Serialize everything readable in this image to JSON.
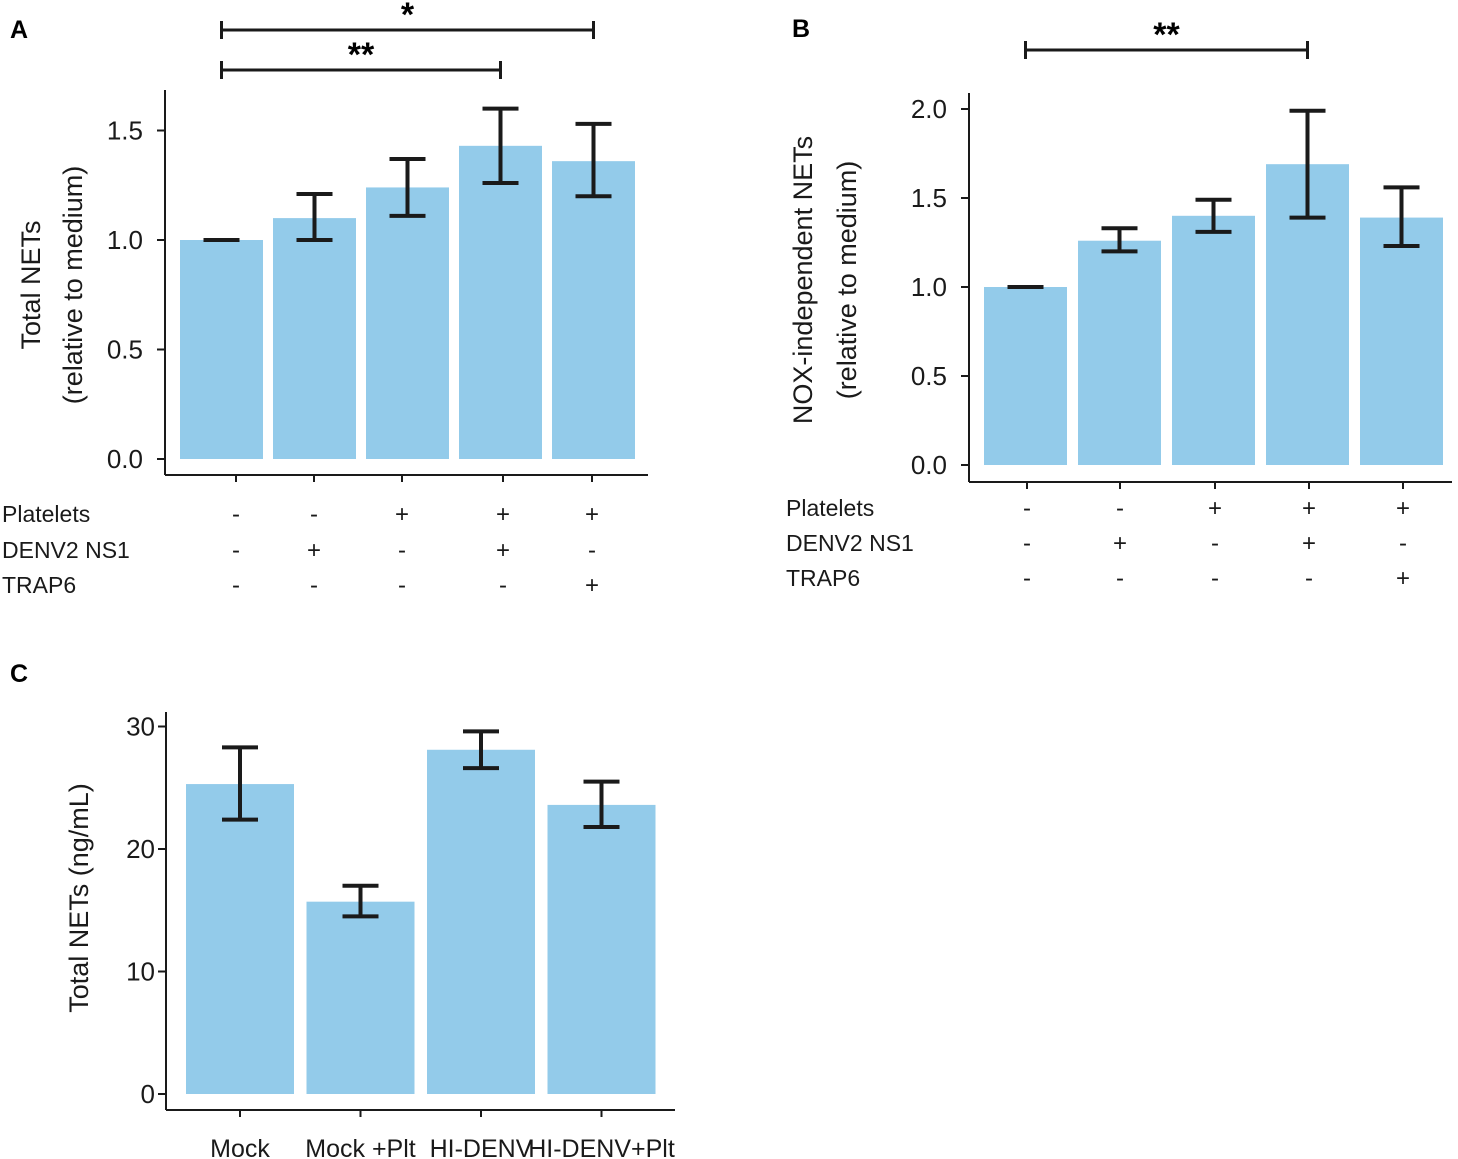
{
  "colors": {
    "bar": "#93cbea",
    "ink": "#1a1a1a"
  },
  "chart_data": [
    {
      "panel": "A",
      "type": "bar",
      "ylabel": [
        "Total NETs",
        "(relative to medium)"
      ],
      "ylim": [
        0,
        1.7
      ],
      "yticks": [
        0.0,
        0.5,
        1.0,
        1.5
      ],
      "ytick_labels": [
        "0.0",
        "0.5",
        "1.0",
        "1.5"
      ],
      "values": [
        1.0,
        1.1,
        1.24,
        1.43,
        1.36
      ],
      "err_low": [
        1.0,
        1.0,
        1.11,
        1.26,
        1.2
      ],
      "err_high": [
        1.0,
        1.21,
        1.37,
        1.6,
        1.53
      ],
      "conditions": [
        {
          "name": "Platelets",
          "signs": [
            "-",
            "-",
            "+",
            "+",
            "+"
          ]
        },
        {
          "name": "DENV2 NS1",
          "signs": [
            "-",
            "+",
            "-",
            "+",
            "-"
          ]
        },
        {
          "name": "TRAP6",
          "signs": [
            "-",
            "-",
            "-",
            "-",
            "+"
          ]
        }
      ],
      "significance": [
        {
          "from": 0,
          "to": 4,
          "label": "*"
        },
        {
          "from": 0,
          "to": 3,
          "label": "**"
        }
      ]
    },
    {
      "panel": "B",
      "type": "bar",
      "ylabel": [
        "NOX-independent NETs",
        "(relative to medium)"
      ],
      "ylim": [
        0,
        2.05
      ],
      "yticks": [
        0.0,
        0.5,
        1.0,
        1.5,
        2.0
      ],
      "ytick_labels": [
        "0.0",
        "0.5",
        "1.0",
        "1.5",
        "2.0"
      ],
      "values": [
        1.0,
        1.26,
        1.4,
        1.69,
        1.39
      ],
      "err_low": [
        1.0,
        1.2,
        1.31,
        1.39,
        1.23
      ],
      "err_high": [
        1.0,
        1.33,
        1.49,
        1.99,
        1.56
      ],
      "conditions": [
        {
          "name": "Platelets",
          "signs": [
            "-",
            "-",
            "+",
            "+",
            "+"
          ]
        },
        {
          "name": "DENV2 NS1",
          "signs": [
            "-",
            "+",
            "-",
            "+",
            "-"
          ]
        },
        {
          "name": "TRAP6",
          "signs": [
            "-",
            "-",
            "-",
            "-",
            "+"
          ]
        }
      ],
      "significance": [
        {
          "from": 0,
          "to": 3,
          "label": "**"
        }
      ]
    },
    {
      "panel": "C",
      "type": "bar",
      "ylabel": [
        "Total NETs (ng/mL)"
      ],
      "ylim": [
        0,
        31
      ],
      "yticks": [
        0,
        10,
        20,
        30
      ],
      "ytick_labels": [
        "0",
        "10",
        "20",
        "30"
      ],
      "categories": [
        "Mock",
        "Mock +Plt",
        "HI-DENV",
        "HI-DENV+Plt"
      ],
      "values": [
        25.3,
        15.7,
        28.1,
        23.6
      ],
      "err_low": [
        22.4,
        14.5,
        26.6,
        21.8
      ],
      "err_high": [
        28.3,
        17.0,
        29.6,
        25.5
      ],
      "significance": []
    }
  ]
}
